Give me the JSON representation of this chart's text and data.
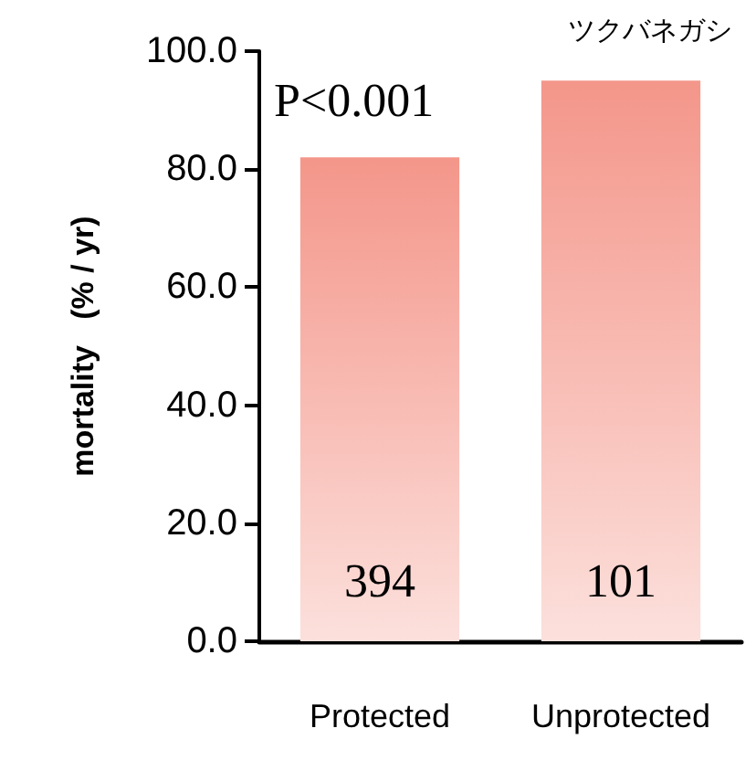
{
  "chart_data": {
    "type": "bar",
    "title": "ツクバネガシ",
    "ylabel": "mortality   (% / yr)",
    "categories": [
      "Protected",
      "Unprotected"
    ],
    "values": [
      82,
      95
    ],
    "color": "#f4968a",
    "ylim": [
      0,
      100
    ],
    "yticks": [
      {
        "value": 0,
        "label": "0.0"
      },
      {
        "value": 20,
        "label": "20.0"
      },
      {
        "value": 40,
        "label": "40.0"
      },
      {
        "value": 60,
        "label": "60.0"
      },
      {
        "value": 80,
        "label": "80.0"
      },
      {
        "value": 100,
        "label": "100.0"
      }
    ],
    "grid": false,
    "annotations": [
      "P<0.001",
      "394",
      "101"
    ]
  }
}
